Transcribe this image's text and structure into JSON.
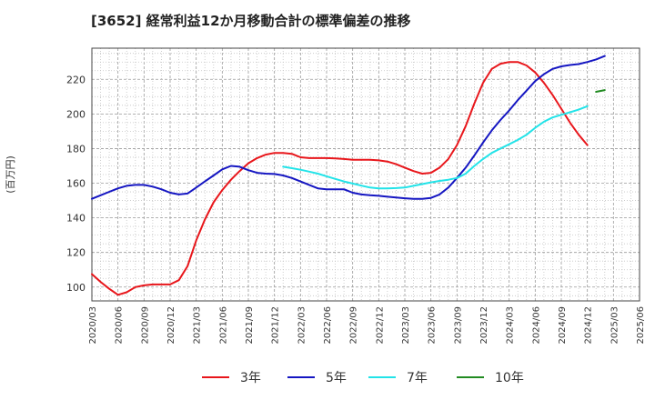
{
  "chart_data": {
    "type": "line",
    "title": "[3652]  経常利益12か月移動合計の標準偏差の推移",
    "ylabel": "(百万円)",
    "xlabel": "",
    "ylim": [
      92,
      238
    ],
    "yticks": [
      100,
      120,
      140,
      160,
      180,
      200,
      220
    ],
    "x_start": "2020/03",
    "x_end": "2025/06",
    "xticks": [
      "2020/03",
      "2020/06",
      "2020/09",
      "2020/12",
      "2021/03",
      "2021/06",
      "2021/09",
      "2021/12",
      "2022/03",
      "2022/06",
      "2022/09",
      "2022/12",
      "2023/03",
      "2023/06",
      "2023/09",
      "2023/12",
      "2024/03",
      "2024/06",
      "2024/09",
      "2024/12",
      "2025/03",
      "2025/06"
    ],
    "grid": true,
    "legend_position": "bottom",
    "series": [
      {
        "name": "3年",
        "color": "#e8161b",
        "start": "2020/03",
        "values": [
          107.5,
          103,
          99,
          95.5,
          97,
          100,
          101,
          101.5,
          101.5,
          101.5,
          104,
          112,
          127,
          139,
          149,
          156,
          162,
          167,
          171.5,
          174.5,
          176.5,
          177.5,
          177.5,
          177,
          175,
          174.5,
          174.5,
          174.5,
          174.3,
          174,
          173.5,
          173.5,
          173.5,
          173.2,
          172.5,
          171,
          169,
          167,
          165.5,
          166,
          169,
          174,
          182,
          193,
          206,
          218,
          226,
          229,
          230,
          230,
          228,
          224,
          218,
          211,
          203,
          195,
          188,
          182
        ]
      },
      {
        "name": "5年",
        "color": "#1516c2",
        "start": "2020/03",
        "values": [
          151,
          153,
          155,
          157,
          158.5,
          159,
          159,
          158,
          156.5,
          154.5,
          153.5,
          154,
          157.5,
          161,
          164.5,
          168,
          170,
          169.5,
          167.5,
          166,
          165.5,
          165.3,
          164.5,
          163,
          161,
          159,
          157,
          156.5,
          156.5,
          156.5,
          154.5,
          153.5,
          153,
          152.7,
          152.2,
          151.7,
          151.3,
          151,
          151,
          151.5,
          153.5,
          157.5,
          163,
          169,
          176,
          183.5,
          190.5,
          196.5,
          202,
          208,
          213.5,
          219,
          223,
          226,
          227.5,
          228.3,
          228.8,
          230,
          231.5,
          233.5
        ]
      },
      {
        "name": "7年",
        "color": "#22e3e8",
        "start": "2022/01",
        "values": [
          169.5,
          168.7,
          167.8,
          166.7,
          165.5,
          164,
          162.5,
          161,
          159.8,
          158.6,
          157.5,
          157,
          157,
          157.2,
          157.5,
          158.5,
          159.5,
          160.5,
          161.3,
          162,
          163,
          165.5,
          170,
          174,
          177.5,
          180,
          182.5,
          185,
          188,
          192,
          195.5,
          198,
          199.5,
          201,
          202.5,
          204.5
        ]
      },
      {
        "name": "10年",
        "color": "#228b22",
        "start": "2025/01",
        "values": [
          212.8,
          213.8
        ]
      }
    ]
  }
}
